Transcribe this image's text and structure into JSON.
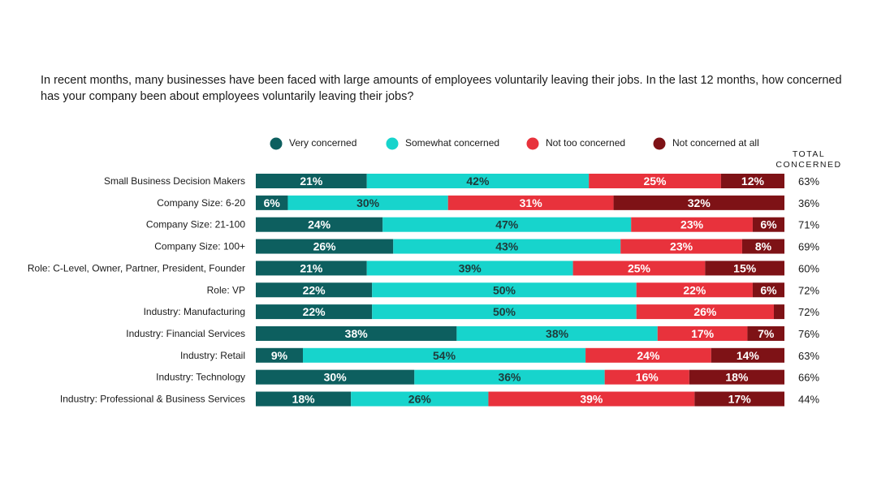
{
  "question": "In recent months, many businesses have been faced with large amounts of employees voluntarily leaving their jobs. In the last 12 months, how concerned has your company been about employees voluntarily leaving their jobs?",
  "total_header": [
    "TOTAL",
    "CONCERNED"
  ],
  "colors": {
    "very": "#0d5f5f",
    "somewhat": "#17d4cc",
    "not_too": "#e8323c",
    "not_at_all": "#7e1216",
    "label_dark": "#1f3a3a",
    "label_light": "#ffffff"
  },
  "chart_data": {
    "type": "bar",
    "orientation": "horizontal",
    "stacked": true,
    "legend_position": "top",
    "categories": [
      "Small Business Decision Makers",
      "Company Size: 6-20",
      "Company Size: 21-100",
      "Company Size: 100+",
      "Role: C-Level, Owner, Partner, President, Founder",
      "Role: VP",
      "Industry: Manufacturing",
      "Industry: Financial Services",
      "Industry: Retail",
      "Industry: Technology",
      "Industry: Professional & Business Services"
    ],
    "series": [
      {
        "name": "Very concerned",
        "key": "very",
        "values": [
          21,
          6,
          24,
          26,
          21,
          22,
          22,
          38,
          9,
          30,
          18
        ]
      },
      {
        "name": "Somewhat concerned",
        "key": "somewhat",
        "values": [
          42,
          30,
          47,
          43,
          39,
          50,
          50,
          38,
          54,
          36,
          26
        ]
      },
      {
        "name": "Not too concerned",
        "key": "not_too",
        "values": [
          25,
          31,
          23,
          23,
          25,
          22,
          26,
          17,
          24,
          16,
          39
        ]
      },
      {
        "name": "Not concerned at all",
        "key": "not_at_all",
        "values": [
          12,
          32,
          6,
          8,
          15,
          6,
          2,
          7,
          14,
          18,
          17
        ]
      }
    ],
    "segment_labels": [
      [
        "21%",
        "42%",
        "25%",
        "12%"
      ],
      [
        "6%",
        "30%",
        "31%",
        "32%"
      ],
      [
        "24%",
        "47%",
        "23%",
        "6%"
      ],
      [
        "26%",
        "43%",
        "23%",
        "8%"
      ],
      [
        "21%",
        "39%",
        "25%",
        "15%"
      ],
      [
        "22%",
        "50%",
        "22%",
        "6%"
      ],
      [
        "22%",
        "50%",
        "26%",
        ""
      ],
      [
        "38%",
        "38%",
        "17%",
        "7%"
      ],
      [
        "9%",
        "54%",
        "24%",
        "14%"
      ],
      [
        "30%",
        "36%",
        "16%",
        "18%"
      ],
      [
        "18%",
        "26%",
        "39%",
        "17%"
      ]
    ],
    "total_concerned": [
      "63%",
      "36%",
      "71%",
      "69%",
      "60%",
      "72%",
      "72%",
      "76%",
      "63%",
      "66%",
      "44%"
    ],
    "xlim": [
      0,
      100
    ]
  }
}
